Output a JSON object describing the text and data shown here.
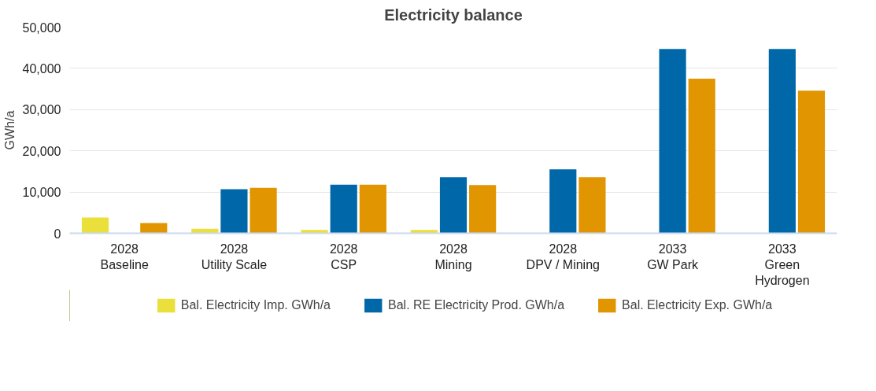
{
  "chart_data": {
    "type": "bar",
    "title": "Electricity balance",
    "ylabel": "GWh/a",
    "categories": [
      "2028\nBaseline",
      "2028\nUtility Scale",
      "2028\nCSP",
      "2028\nMining",
      "2028\nDPV / Mining",
      "2033\nGW Park",
      "2033\nGreen\nHydrogen"
    ],
    "series": [
      {
        "name": "Bal. Electricity Imp. GWh/a",
        "color": "#ebdf3c",
        "values": [
          3800,
          1100,
          800,
          800,
          0,
          0,
          0
        ]
      },
      {
        "name": "Bal. RE Electricity Prod. GWh/a",
        "color": "#0068a9",
        "values": [
          0,
          10700,
          11800,
          13600,
          15500,
          44700,
          44700
        ]
      },
      {
        "name": "Bal. Electricity Exp. GWh/a",
        "color": "#e19500",
        "values": [
          2500,
          11000,
          11800,
          11700,
          13600,
          37500,
          34600
        ]
      }
    ],
    "ylim": [
      0,
      50000
    ],
    "yticks": [
      {
        "value": 0,
        "label": "0"
      },
      {
        "value": 10000,
        "label": "10,000"
      },
      {
        "value": 20000,
        "label": "20,000"
      },
      {
        "value": 30000,
        "label": "30,000"
      },
      {
        "value": 40000,
        "label": "40,000"
      },
      {
        "value": 50000,
        "label": "50,000"
      }
    ],
    "grid": "y",
    "legend": "bottom"
  }
}
